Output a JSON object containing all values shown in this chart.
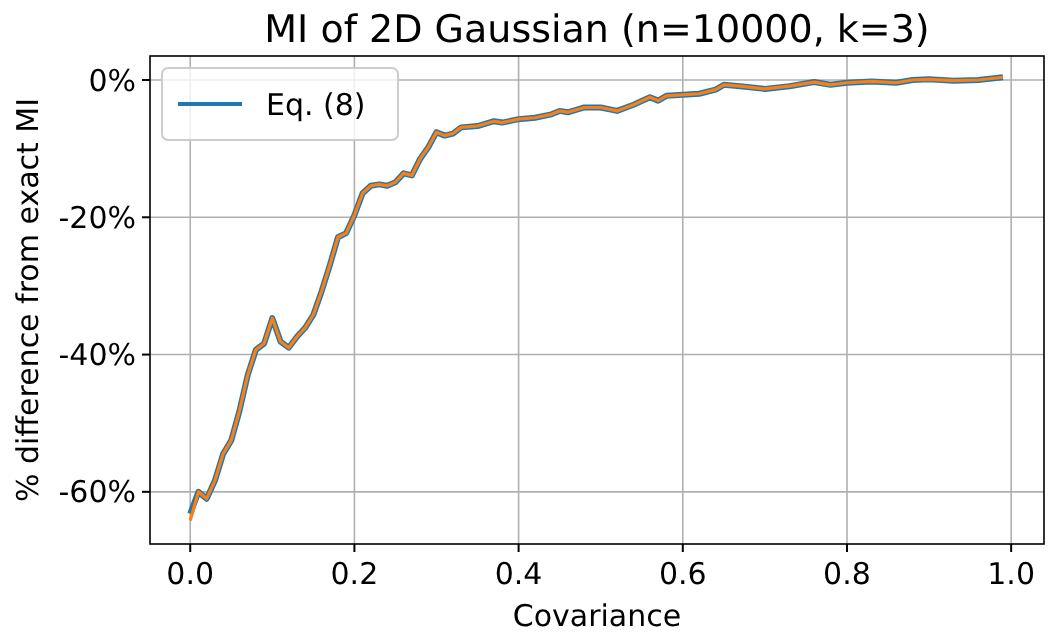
{
  "chart_data": {
    "type": "line",
    "title": "MI of 2D Gaussian (n=10000, k=3)",
    "xlabel": "Covariance",
    "ylabel": "% difference from exact MI",
    "x": [
      0,
      0.01,
      0.02,
      0.03,
      0.04,
      0.05,
      0.06,
      0.07,
      0.08,
      0.09,
      0.1,
      0.11,
      0.12,
      0.13,
      0.14,
      0.15,
      0.16,
      0.17,
      0.18,
      0.19,
      0.2,
      0.21,
      0.22,
      0.23,
      0.24,
      0.25,
      0.26,
      0.27,
      0.28,
      0.29,
      0.3,
      0.31,
      0.32,
      0.33,
      0.35,
      0.37,
      0.38,
      0.4,
      0.42,
      0.44,
      0.45,
      0.46,
      0.48,
      0.5,
      0.52,
      0.54,
      0.56,
      0.57,
      0.58,
      0.62,
      0.64,
      0.65,
      0.67,
      0.7,
      0.73,
      0.76,
      0.78,
      0.8,
      0.83,
      0.86,
      0.88,
      0.9,
      0.93,
      0.96,
      0.99
    ],
    "series": [
      {
        "name": "Eq. (8)",
        "color": "#1f77b4",
        "values": [
          -63.2,
          -60,
          -61,
          -58.4,
          -54.5,
          -52.5,
          -48.2,
          -43,
          -39.3,
          -38.4,
          -34.7,
          -38.1,
          -39,
          -37.4,
          -36.1,
          -34.2,
          -30.8,
          -27,
          -22.9,
          -22.3,
          -19.7,
          -16.5,
          -15.4,
          -15.2,
          -15.4,
          -14.9,
          -13.6,
          -13.9,
          -11.5,
          -9.8,
          -7.6,
          -8.1,
          -7.8,
          -6.9,
          -6.7,
          -6,
          -6.2,
          -5.7,
          -5.5,
          -5,
          -4.5,
          -4.7,
          -4,
          -4,
          -4.5,
          -3.6,
          -2.5,
          -3,
          -2.3,
          -2,
          -1.4,
          -0.7,
          -0.9,
          -1.3,
          -0.9,
          -0.3,
          -0.7,
          -0.4,
          -0.2,
          -0.4,
          0,
          0.1,
          -0.1,
          0,
          0.4
        ]
      },
      {
        "color": "#ff7f0e",
        "values": [
          -64.2,
          -60,
          -61,
          -58.4,
          -54.5,
          -52.5,
          -48.2,
          -43,
          -39.3,
          -38.4,
          -34.7,
          -38.1,
          -39,
          -37.4,
          -36.1,
          -34.2,
          -30.8,
          -27,
          -22.9,
          -22.3,
          -19.7,
          -16.5,
          -15.4,
          -15.2,
          -15.4,
          -14.9,
          -13.6,
          -13.9,
          -11.5,
          -9.8,
          -7.6,
          -8.1,
          -7.8,
          -6.9,
          -6.7,
          -6,
          -6.2,
          -5.7,
          -5.5,
          -5,
          -4.5,
          -4.7,
          -4,
          -4,
          -4.5,
          -3.6,
          -2.5,
          -3,
          -2.3,
          -2,
          -1.4,
          -0.7,
          -0.9,
          -1.3,
          -0.9,
          -0.3,
          -0.7,
          -0.4,
          -0.2,
          -0.4,
          0,
          0.1,
          -0.1,
          0,
          0.4
        ]
      }
    ],
    "xlim": [
      -0.049,
      1.04
    ],
    "ylim": [
      -67.6,
      3.5
    ],
    "xticks": [
      {
        "value": 0,
        "label": "0.0"
      },
      {
        "value": 0.2,
        "label": "0.2"
      },
      {
        "value": 0.4,
        "label": "0.4"
      },
      {
        "value": 0.6,
        "label": "0.6"
      },
      {
        "value": 0.8,
        "label": "0.8"
      },
      {
        "value": 1,
        "label": "1.0"
      }
    ],
    "yticks": [
      {
        "value": -60,
        "label": "-60%"
      },
      {
        "value": -40,
        "label": "-40%"
      },
      {
        "value": -20,
        "label": "-20%"
      },
      {
        "value": 0,
        "label": "0%"
      }
    ],
    "grid": true,
    "legend": "top left",
    "marker": "none",
    "line_style": "solid"
  }
}
